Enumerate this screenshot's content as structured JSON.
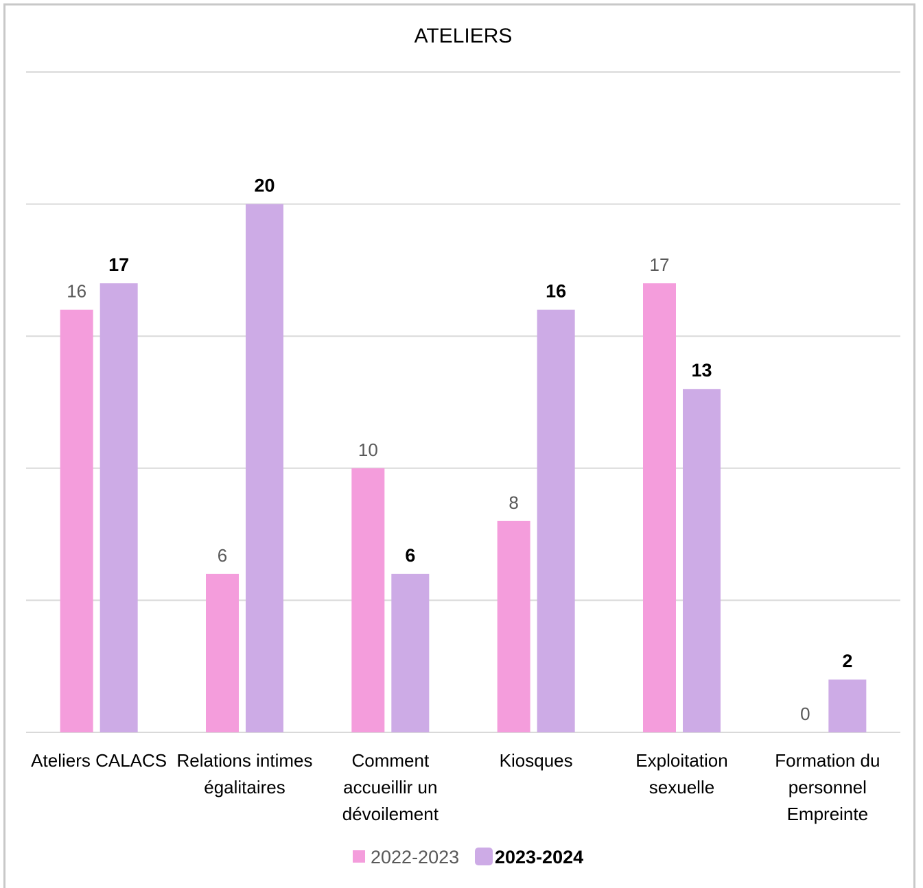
{
  "chart_data": {
    "type": "bar",
    "title": "ATELIERS",
    "categories": [
      [
        "Ateliers CALACS"
      ],
      [
        "Relations intimes",
        "égalitaires"
      ],
      [
        "Comment",
        "accueillir un",
        "dévoilement"
      ],
      [
        "Kiosques"
      ],
      [
        "Exploitation",
        "sexuelle"
      ],
      [
        "Formation du",
        "personnel",
        "Empreinte"
      ]
    ],
    "series": [
      {
        "name": "2022-2023",
        "color": "#f49ddc",
        "values": [
          16,
          6,
          10,
          8,
          17,
          0
        ]
      },
      {
        "name": "2023-2024",
        "color": "#cdabe6",
        "values": [
          17,
          20,
          6,
          16,
          13,
          2
        ]
      }
    ],
    "ylim": [
      0,
      25
    ],
    "gridlines": [
      0,
      5,
      10,
      15,
      20,
      25
    ],
    "grid": true,
    "legend": "bottom"
  }
}
